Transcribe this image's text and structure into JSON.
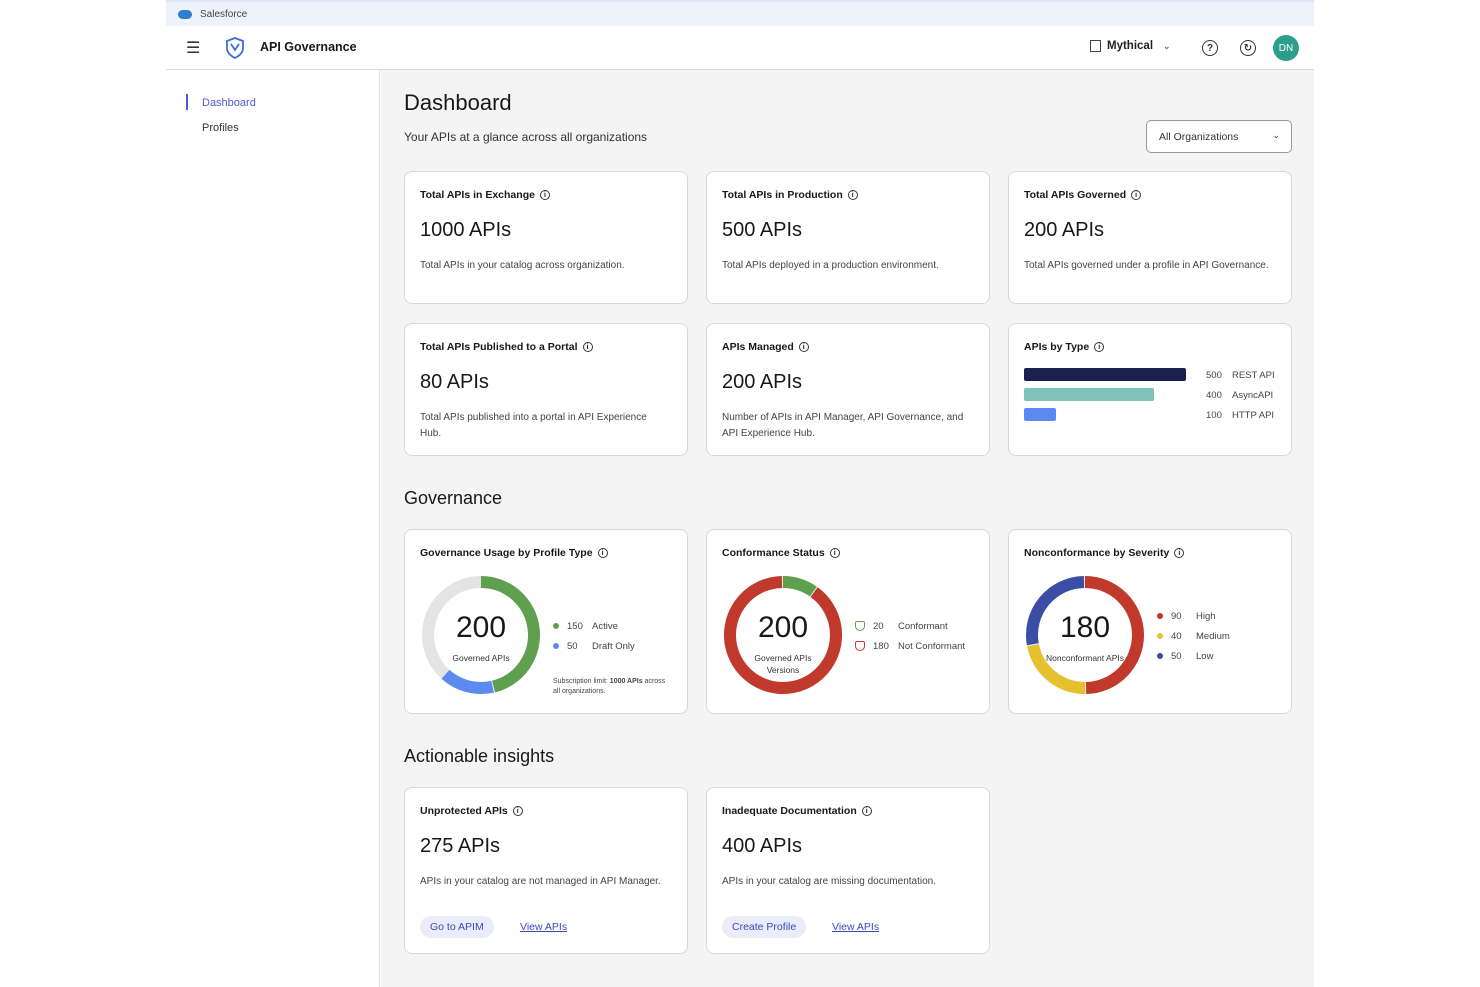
{
  "browser": {
    "tab_label": "Salesforce"
  },
  "header": {
    "app_title": "API Governance",
    "org_name": "Mythical",
    "avatar_initials": "DN",
    "icons": [
      "menu-icon",
      "api-governance-logo-icon",
      "building-icon",
      "chevron-down-icon",
      "help-icon",
      "history-icon"
    ]
  },
  "sidebar": {
    "items": [
      {
        "label": "Dashboard",
        "active": true
      },
      {
        "label": "Profiles",
        "active": false
      }
    ]
  },
  "page": {
    "title": "Dashboard",
    "subtitle": "Your APIs at a glance across all organizations",
    "org_filter": {
      "selected": "All Organizations"
    }
  },
  "summary_cards": [
    {
      "title": "Total APIs in Exchange",
      "value": "1000 APIs",
      "description": "Total APIs in your catalog across organization."
    },
    {
      "title": "Total APIs in Production",
      "value": "500 APIs",
      "description": "Total APIs deployed in a production environment."
    },
    {
      "title": "Total APIs Governed",
      "value": "200 APIs",
      "description": "Total APIs governed under a profile in API Governance."
    },
    {
      "title": "Total APIs Published to a Portal",
      "value": "80 APIs",
      "description": "Total APIs published into a portal in API Experience Hub."
    },
    {
      "title": "APIs Managed",
      "value": "200 APIs",
      "description": "Number of APIs in API Manager, API Governance, and API Experience Hub."
    }
  ],
  "apis_by_type": {
    "title": "APIs by Type",
    "max": 500,
    "items": [
      {
        "value": 500,
        "value_label": "500",
        "label": "REST API",
        "color": "#1b2050"
      },
      {
        "value": 400,
        "value_label": "400",
        "label": "AsyncAPI",
        "color": "#7fc3b8"
      },
      {
        "value": 100,
        "value_label": "100",
        "label": "HTTP API",
        "color": "#5b8af0"
      }
    ]
  },
  "governance": {
    "heading": "Governance",
    "usage": {
      "title": "Governance Usage by Profile Type",
      "total": "200",
      "center_label": "Governed APIs",
      "legend": [
        {
          "value": 150,
          "value_label": "150",
          "label": "Active",
          "color": "#5ea04e"
        },
        {
          "value": 50,
          "value_label": "50",
          "label": "Draft Only",
          "color": "#5b8af0"
        }
      ],
      "limit_value": 1000,
      "note_prefix": "Subscription limit: ",
      "note_bold": "1000 APIs",
      "note_suffix": " across all organizations."
    },
    "conformance": {
      "title": "Conformance Status",
      "total": "200",
      "center_label": "Governed APIs Versions",
      "legend": [
        {
          "value": 20,
          "value_label": "20",
          "label": "Conformant",
          "color": "#5ea04e"
        },
        {
          "value": 180,
          "value_label": "180",
          "label": "Not Conformant",
          "color": "#c0392b"
        }
      ]
    },
    "severity": {
      "title": "Nonconformance by Severity",
      "total": "180",
      "center_label": "Nonconformant APIs",
      "legend": [
        {
          "value": 90,
          "value_label": "90",
          "label": "High",
          "color": "#c0392b"
        },
        {
          "value": 40,
          "value_label": "40",
          "label": "Medium",
          "color": "#e5c12f"
        },
        {
          "value": 50,
          "value_label": "50",
          "label": "Low",
          "color": "#3b4ea6"
        }
      ]
    }
  },
  "insights": {
    "heading": "Actionable insights",
    "cards": [
      {
        "title": "Unprotected APIs",
        "value": "275 APIs",
        "description": "APIs in your catalog are not managed in API Manager.",
        "primary": "Go to APIM",
        "link": "View APIs"
      },
      {
        "title": "Inadequate Documentation",
        "value": "400 APIs",
        "description": "APIs in your catalog are missing documentation.",
        "primary": "Create Profile",
        "link": "View APIs"
      }
    ]
  }
}
